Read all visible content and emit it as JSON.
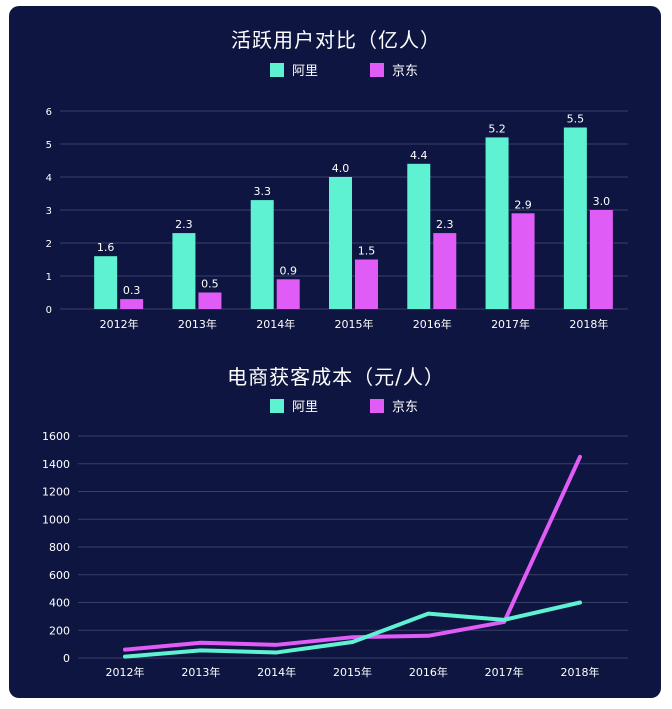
{
  "colors": {
    "ali": "#5ef2d3",
    "jd": "#df5cf6",
    "background": "#0e1540",
    "grid": "#3a3f66",
    "text": "#ffffff"
  },
  "legend": {
    "ali": "阿里",
    "jd": "京东"
  },
  "chart_data": [
    {
      "type": "bar",
      "title": "活跃用户对比（亿人）",
      "categories": [
        "2012年",
        "2013年",
        "2014年",
        "2015年",
        "2016年",
        "2017年",
        "2018年"
      ],
      "series": [
        {
          "name": "阿里",
          "values": [
            1.6,
            2.3,
            3.3,
            4.0,
            4.4,
            5.2,
            5.5
          ]
        },
        {
          "name": "京东",
          "values": [
            0.3,
            0.5,
            0.9,
            1.5,
            2.3,
            2.9,
            3.0
          ]
        }
      ],
      "yticks": [
        0,
        1,
        2,
        3,
        4,
        5,
        6
      ],
      "ylim": [
        0,
        6
      ],
      "grid": true,
      "legend_position": "top-center"
    },
    {
      "type": "line",
      "title": "电商获客成本（元/人）",
      "categories": [
        "2012年",
        "2013年",
        "2014年",
        "2015年",
        "2016年",
        "2017年",
        "2018年"
      ],
      "series": [
        {
          "name": "阿里",
          "values": [
            10,
            55,
            40,
            115,
            320,
            275,
            400
          ]
        },
        {
          "name": "京东",
          "values": [
            60,
            110,
            95,
            150,
            160,
            260,
            1450
          ]
        }
      ],
      "yticks": [
        0,
        200,
        400,
        600,
        800,
        1000,
        1200,
        1400,
        1600
      ],
      "ylim": [
        0,
        1600
      ],
      "grid": true,
      "legend_position": "top-center"
    }
  ]
}
